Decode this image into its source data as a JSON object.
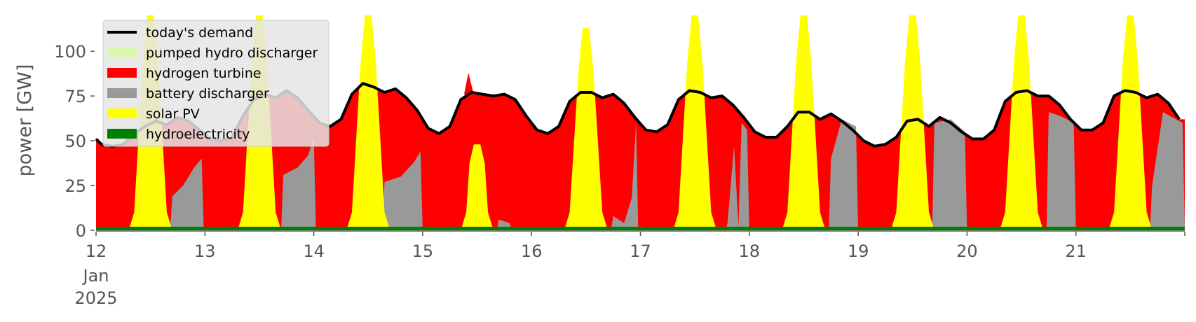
{
  "chart_data": {
    "type": "area",
    "stacked": true,
    "ylabel": "power [GW]",
    "xlabel": "",
    "ylim": [
      0,
      120
    ],
    "xlim_days": [
      12,
      22
    ],
    "y_ticks": [
      "0",
      "25",
      "50",
      "75",
      "100"
    ],
    "x_ticks": [
      {
        "day": 12,
        "label": "12",
        "sub1": "Jan",
        "sub2": "2025"
      },
      {
        "day": 13,
        "label": "13"
      },
      {
        "day": 14,
        "label": "14"
      },
      {
        "day": 15,
        "label": "15"
      },
      {
        "day": 16,
        "label": "16"
      },
      {
        "day": 17,
        "label": "17"
      },
      {
        "day": 18,
        "label": "18"
      },
      {
        "day": 19,
        "label": "19"
      },
      {
        "day": 20,
        "label": "20"
      },
      {
        "day": 21,
        "label": "21"
      }
    ],
    "legend_position": "top-left",
    "series": [
      {
        "name": "hydroelectricity",
        "color": "#008000"
      },
      {
        "name": "solar PV",
        "color": "#ffff00"
      },
      {
        "name": "battery discharger",
        "color": "#999999"
      },
      {
        "name": "hydrogen turbine",
        "color": "#ff0000"
      },
      {
        "name": "pumped hydro discharger",
        "color": "#d9f7b0"
      }
    ],
    "demand": {
      "name": "today's demand",
      "color": "#000000",
      "points": [
        [
          12.0,
          51
        ],
        [
          12.05,
          48
        ],
        [
          12.15,
          47
        ],
        [
          12.25,
          48
        ],
        [
          12.35,
          54
        ],
        [
          12.45,
          58
        ],
        [
          12.55,
          61
        ],
        [
          12.65,
          59
        ],
        [
          12.75,
          63
        ],
        [
          12.85,
          61
        ],
        [
          12.95,
          56
        ],
        [
          13.05,
          51
        ],
        [
          13.15,
          50
        ],
        [
          13.25,
          52
        ],
        [
          13.35,
          64
        ],
        [
          13.45,
          73
        ],
        [
          13.55,
          76
        ],
        [
          13.65,
          74
        ],
        [
          13.75,
          78
        ],
        [
          13.85,
          74
        ],
        [
          13.95,
          67
        ],
        [
          14.05,
          60
        ],
        [
          14.15,
          58
        ],
        [
          14.25,
          62
        ],
        [
          14.35,
          76
        ],
        [
          14.45,
          82
        ],
        [
          14.55,
          80
        ],
        [
          14.65,
          77
        ],
        [
          14.75,
          79
        ],
        [
          14.85,
          74
        ],
        [
          14.95,
          67
        ],
        [
          15.05,
          57
        ],
        [
          15.15,
          54
        ],
        [
          15.25,
          58
        ],
        [
          15.35,
          73
        ],
        [
          15.45,
          77
        ],
        [
          15.55,
          76
        ],
        [
          15.65,
          75
        ],
        [
          15.75,
          76
        ],
        [
          15.85,
          73
        ],
        [
          15.95,
          64
        ],
        [
          16.05,
          56
        ],
        [
          16.15,
          54
        ],
        [
          16.25,
          58
        ],
        [
          16.35,
          72
        ],
        [
          16.45,
          77
        ],
        [
          16.55,
          77
        ],
        [
          16.65,
          74
        ],
        [
          16.75,
          76
        ],
        [
          16.85,
          71
        ],
        [
          16.95,
          63
        ],
        [
          17.05,
          56
        ],
        [
          17.15,
          55
        ],
        [
          17.25,
          59
        ],
        [
          17.35,
          73
        ],
        [
          17.45,
          78
        ],
        [
          17.55,
          77
        ],
        [
          17.65,
          74
        ],
        [
          17.75,
          75
        ],
        [
          17.85,
          70
        ],
        [
          17.95,
          63
        ],
        [
          18.05,
          55
        ],
        [
          18.15,
          52
        ],
        [
          18.25,
          52
        ],
        [
          18.35,
          58
        ],
        [
          18.45,
          66
        ],
        [
          18.55,
          66
        ],
        [
          18.65,
          62
        ],
        [
          18.75,
          65
        ],
        [
          18.85,
          61
        ],
        [
          18.95,
          56
        ],
        [
          19.05,
          50
        ],
        [
          19.15,
          47
        ],
        [
          19.25,
          48
        ],
        [
          19.35,
          52
        ],
        [
          19.45,
          61
        ],
        [
          19.55,
          62
        ],
        [
          19.65,
          58
        ],
        [
          19.75,
          63
        ],
        [
          19.85,
          60
        ],
        [
          19.95,
          55
        ],
        [
          20.05,
          51
        ],
        [
          20.15,
          51
        ],
        [
          20.25,
          56
        ],
        [
          20.35,
          72
        ],
        [
          20.45,
          77
        ],
        [
          20.55,
          78
        ],
        [
          20.65,
          75
        ],
        [
          20.75,
          75
        ],
        [
          20.85,
          70
        ],
        [
          20.95,
          62
        ],
        [
          21.05,
          56
        ],
        [
          21.15,
          56
        ],
        [
          21.25,
          60
        ],
        [
          21.35,
          75
        ],
        [
          21.45,
          78
        ],
        [
          21.55,
          77
        ],
        [
          21.65,
          74
        ],
        [
          21.75,
          76
        ],
        [
          21.85,
          71
        ],
        [
          21.95,
          62
        ]
      ]
    },
    "hydro_level": 1.5,
    "solar": [
      {
        "day": 12,
        "peak": 120
      },
      {
        "day": 13,
        "peak": 120
      },
      {
        "day": 14,
        "peak": 120
      },
      {
        "day": 15,
        "peak": 48
      },
      {
        "day": 16,
        "peak": 113
      },
      {
        "day": 17,
        "peak": 120
      },
      {
        "day": 18,
        "peak": 120
      },
      {
        "day": 19,
        "peak": 120
      },
      {
        "day": 20,
        "peak": 120
      },
      {
        "day": 21,
        "peak": 120
      }
    ],
    "battery": [
      [
        12.7,
        19
      ],
      [
        12.8,
        25
      ],
      [
        12.9,
        35
      ],
      [
        12.97,
        40
      ],
      [
        13.72,
        31
      ],
      [
        13.85,
        35
      ],
      [
        13.95,
        42
      ],
      [
        14.0,
        52
      ],
      [
        14.65,
        27
      ],
      [
        14.8,
        30
      ],
      [
        14.92,
        38
      ],
      [
        14.98,
        44
      ],
      [
        15.7,
        6
      ],
      [
        15.8,
        4
      ],
      [
        16.75,
        8
      ],
      [
        16.85,
        4
      ],
      [
        16.92,
        18
      ],
      [
        16.96,
        60
      ],
      [
        17.8,
        4
      ],
      [
        17.86,
        47
      ],
      [
        17.9,
        2
      ],
      [
        17.93,
        60
      ],
      [
        17.98,
        56
      ],
      [
        18.75,
        40
      ],
      [
        18.85,
        62
      ],
      [
        18.98,
        58
      ],
      [
        19.7,
        60
      ],
      [
        19.85,
        62
      ],
      [
        19.98,
        55
      ],
      [
        20.75,
        66
      ],
      [
        20.85,
        64
      ],
      [
        20.98,
        60
      ],
      [
        21.7,
        25
      ],
      [
        21.8,
        66
      ],
      [
        21.98,
        60
      ]
    ],
    "spikes": [
      {
        "day": 15.42,
        "value": 88
      }
    ]
  },
  "legend": [
    {
      "label": "today's demand",
      "kind": "line",
      "color": "#000000"
    },
    {
      "label": "pumped hydro discharger",
      "kind": "patch",
      "color": "#d9f7b0"
    },
    {
      "label": "hydrogen turbine",
      "kind": "patch",
      "color": "#ff0000"
    },
    {
      "label": "battery discharger",
      "kind": "patch",
      "color": "#999999"
    },
    {
      "label": "solar PV",
      "kind": "patch",
      "color": "#ffff00"
    },
    {
      "label": "hydroelectricity",
      "kind": "patch",
      "color": "#008000"
    }
  ]
}
